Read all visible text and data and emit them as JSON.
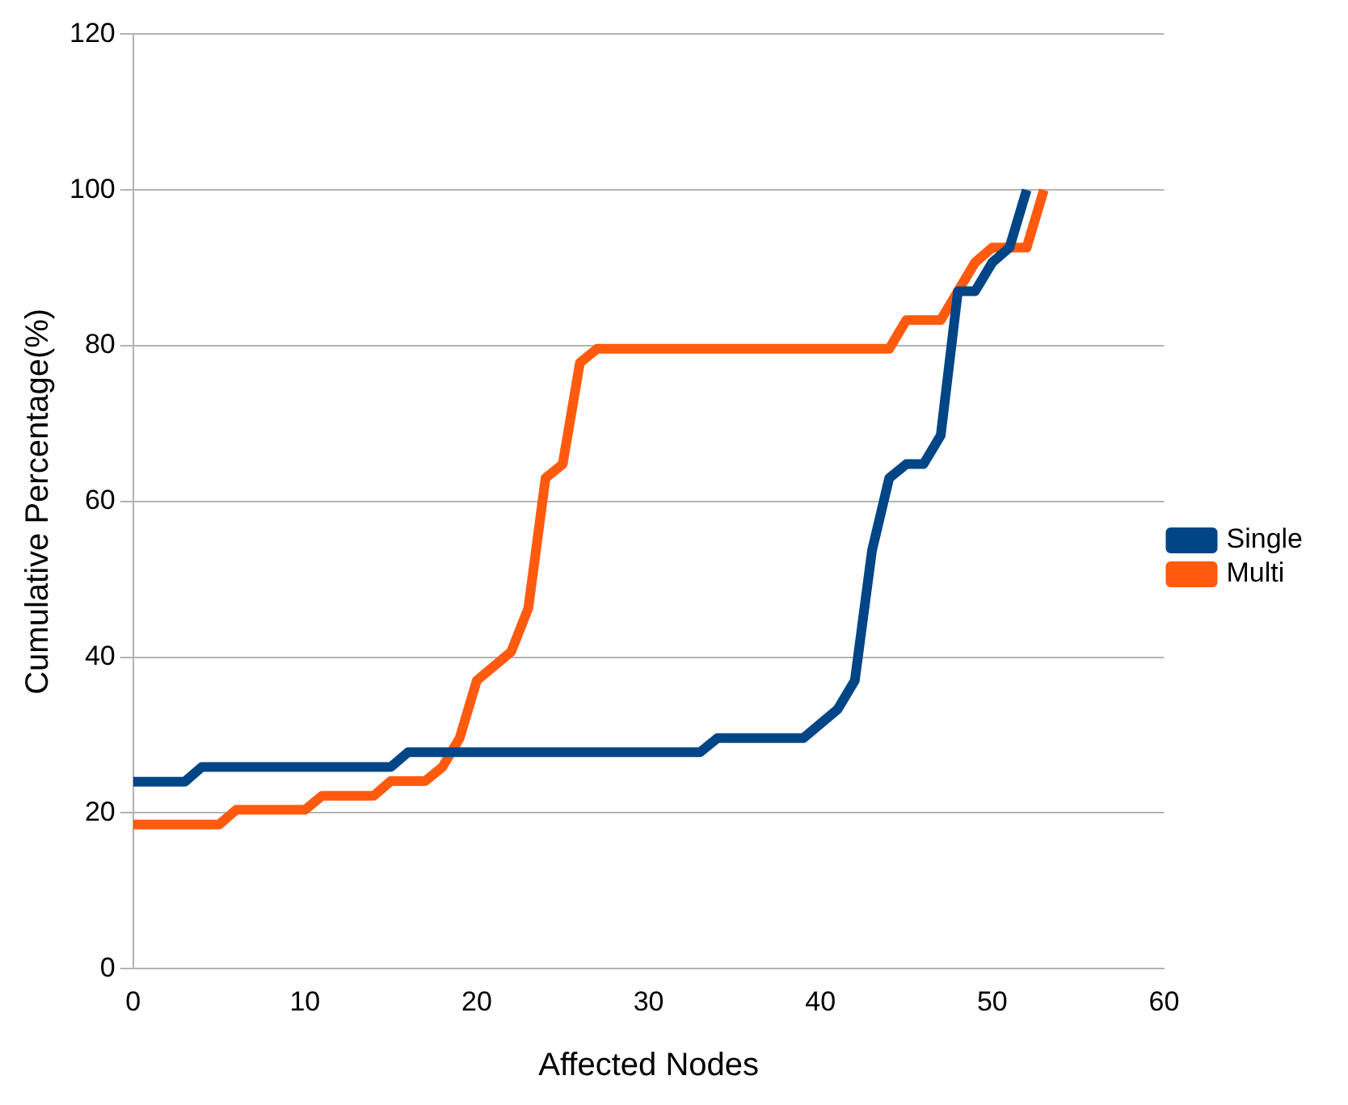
{
  "chart_data": {
    "type": "line",
    "xlabel": "Affected Nodes",
    "ylabel": "Cumulative Percentage(%)",
    "xlim": [
      0,
      60
    ],
    "xticks": [
      0,
      10,
      20,
      30,
      40,
      50,
      60
    ],
    "ylim": [
      0,
      120
    ],
    "yticks": [
      0,
      20,
      40,
      60,
      80,
      100,
      120
    ],
    "grid": "y",
    "legend": "right",
    "marker": "none",
    "line_style": "solid",
    "series": [
      {
        "name": "Single",
        "color": "#004586",
        "x": [
          0,
          3,
          4,
          15,
          16,
          33,
          34,
          39,
          41,
          42,
          43,
          44,
          45,
          46,
          47,
          48,
          49,
          50,
          51,
          52
        ],
        "values": [
          24,
          24,
          25.9,
          25.9,
          27.8,
          27.8,
          29.6,
          29.6,
          33.3,
          37,
          53.7,
          63,
          64.8,
          64.8,
          68.5,
          87,
          87,
          90.7,
          92.6,
          100
        ]
      },
      {
        "name": "Multi",
        "color": "#ff5a0e",
        "x": [
          0,
          5,
          6,
          10,
          11,
          14,
          15,
          17,
          18,
          19,
          20,
          22,
          23,
          24,
          25,
          26,
          27,
          44,
          45,
          47,
          48,
          49,
          50,
          52,
          53
        ],
        "values": [
          18.5,
          18.5,
          20.4,
          20.4,
          22.2,
          22.2,
          24.1,
          24.1,
          25.9,
          29.6,
          37,
          40.7,
          46.3,
          63,
          64.8,
          77.8,
          79.6,
          79.6,
          83.3,
          83.3,
          87,
          90.7,
          92.6,
          92.6,
          100
        ]
      }
    ]
  }
}
